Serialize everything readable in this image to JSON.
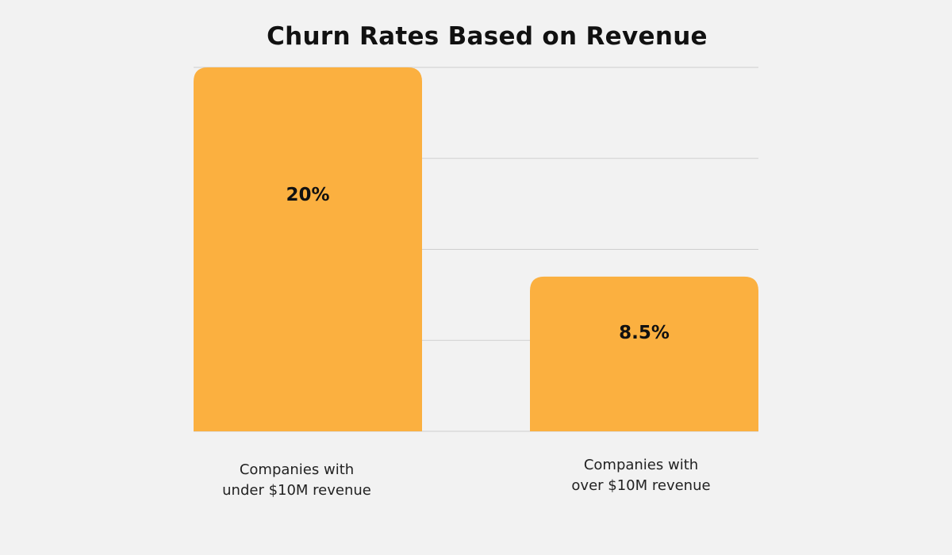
{
  "chart_data": {
    "type": "bar",
    "title": "Churn Rates Based on Revenue",
    "categories": [
      [
        "Companies with",
        "under $10M revenue"
      ],
      [
        "Companies with",
        "over $10M revenue"
      ]
    ],
    "values": [
      20,
      8.5
    ],
    "value_labels": [
      "20%",
      "8.5%"
    ],
    "ylim": [
      0,
      20
    ],
    "grid": true,
    "bar_color": "#fbb040",
    "grid_color": "#cfcfcf"
  }
}
